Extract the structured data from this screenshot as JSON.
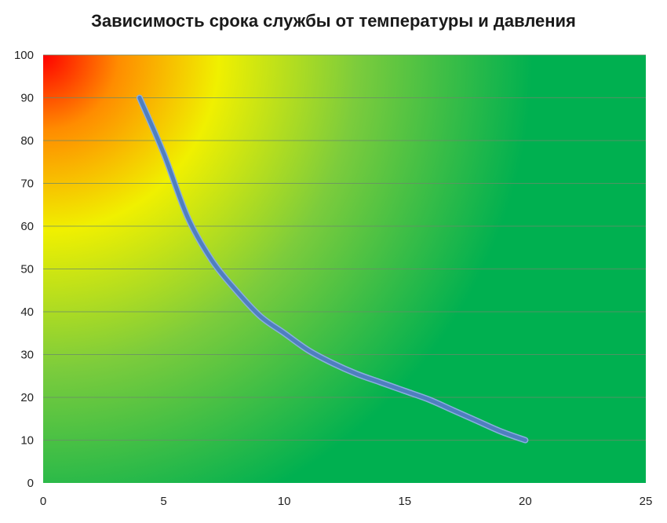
{
  "chart_data": {
    "type": "line",
    "title": "Зависимость срока службы от температуры и давления",
    "xlabel": "",
    "ylabel": "",
    "xlim": [
      0,
      25
    ],
    "ylim": [
      0,
      100
    ],
    "xticks": [
      0,
      5,
      10,
      15,
      20,
      25
    ],
    "yticks": [
      0,
      10,
      20,
      30,
      40,
      50,
      60,
      70,
      80,
      90,
      100
    ],
    "grid": "horizontal",
    "legend": "none",
    "background": "heat-gradient: red at top-left (0,100) through orange and yellow to green",
    "colors": {
      "line": "#4f7fbf",
      "line_edge": "#8aaee0",
      "gradient_red": "#ff0000",
      "gradient_orange": "#ff8c00",
      "gradient_yellow": "#f0f000",
      "gradient_lightgreen": "#7ccc3c",
      "gradient_green": "#00b050",
      "gridline": "#6a8a6a"
    },
    "series": [
      {
        "x": [
          4,
          5,
          6,
          7,
          8,
          9,
          10,
          11,
          12,
          13,
          14,
          15,
          16,
          17,
          18,
          19,
          20
        ],
        "values": [
          90,
          77,
          62,
          52,
          45,
          39,
          35,
          31,
          28,
          25.5,
          23.5,
          21.5,
          19.5,
          17,
          14.5,
          12,
          10
        ]
      }
    ]
  }
}
